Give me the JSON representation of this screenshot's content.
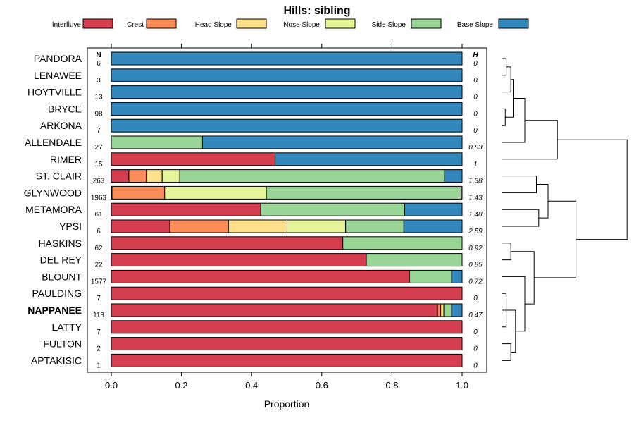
{
  "chart_data": {
    "type": "bar",
    "stacked": true,
    "orientation": "horizontal",
    "title": "Hills: sibling",
    "xlabel": "Proportion",
    "ylabel": "",
    "xlim": [
      0,
      1
    ],
    "xticks": [
      0.0,
      0.2,
      0.4,
      0.6,
      0.8,
      1.0
    ],
    "xtick_labels": [
      "0.0",
      "0.2",
      "0.4",
      "0.6",
      "0.8",
      "1.0"
    ],
    "n_header": "N",
    "h_header": "H",
    "legend_position": "top",
    "series": [
      {
        "name": "Interfluve",
        "color": "#d53e4f"
      },
      {
        "name": "Crest",
        "color": "#fc8d59"
      },
      {
        "name": "Head Slope",
        "color": "#fee08b"
      },
      {
        "name": "Nose Slope",
        "color": "#e6f598"
      },
      {
        "name": "Side Slope",
        "color": "#99d594"
      },
      {
        "name": "Base Slope",
        "color": "#3288bd"
      }
    ],
    "categories": [
      {
        "name": "PANDORA",
        "n": "6",
        "h": "0",
        "bold": false,
        "values": [
          0,
          0,
          0,
          0,
          0,
          1
        ]
      },
      {
        "name": "LENAWEE",
        "n": "3",
        "h": "0",
        "bold": false,
        "values": [
          0,
          0,
          0,
          0,
          0,
          1
        ]
      },
      {
        "name": "HOYTVILLE",
        "n": "13",
        "h": "0",
        "bold": false,
        "values": [
          0,
          0,
          0,
          0,
          0,
          1
        ]
      },
      {
        "name": "BRYCE",
        "n": "98",
        "h": "0",
        "bold": false,
        "values": [
          0,
          0,
          0,
          0,
          0,
          1
        ]
      },
      {
        "name": "ARKONA",
        "n": "7",
        "h": "0",
        "bold": false,
        "values": [
          0,
          0,
          0,
          0,
          0,
          1
        ]
      },
      {
        "name": "ALLENDALE",
        "n": "27",
        "h": "0.83",
        "bold": false,
        "values": [
          0,
          0,
          0,
          0,
          0.26,
          0.74
        ]
      },
      {
        "name": "RIMER",
        "n": "15",
        "h": "1",
        "bold": false,
        "values": [
          0.467,
          0,
          0,
          0,
          0,
          0.533
        ]
      },
      {
        "name": "ST. CLAIR",
        "n": "263",
        "h": "1.38",
        "bold": false,
        "values": [
          0.05,
          0.05,
          0.045,
          0.05,
          0.755,
          0.05
        ]
      },
      {
        "name": "GLYNWOOD",
        "n": "1963",
        "h": "1.43",
        "bold": false,
        "values": [
          0.002,
          0.15,
          0,
          0.29,
          0.555,
          0.003
        ]
      },
      {
        "name": "METAMORA",
        "n": "61",
        "h": "1.48",
        "bold": false,
        "values": [
          0.426,
          0,
          0,
          0,
          0.41,
          0.164
        ]
      },
      {
        "name": "YPSI",
        "n": "6",
        "h": "2.59",
        "bold": false,
        "values": [
          0.167,
          0.167,
          0.167,
          0.167,
          0.166,
          0.166
        ]
      },
      {
        "name": "HASKINS",
        "n": "62",
        "h": "0.92",
        "bold": false,
        "values": [
          0.66,
          0,
          0,
          0,
          0.34,
          0
        ]
      },
      {
        "name": "DEL REY",
        "n": "22",
        "h": "0.85",
        "bold": false,
        "values": [
          0.727,
          0,
          0,
          0,
          0.273,
          0
        ]
      },
      {
        "name": "BLOUNT",
        "n": "1577",
        "h": "0.72",
        "bold": false,
        "values": [
          0.85,
          0,
          0,
          0,
          0.12,
          0.03
        ]
      },
      {
        "name": "PAULDING",
        "n": "7",
        "h": "0",
        "bold": false,
        "values": [
          1,
          0,
          0,
          0,
          0,
          0
        ]
      },
      {
        "name": "NAPPANEE",
        "n": "113",
        "h": "0.47",
        "bold": true,
        "values": [
          0.93,
          0.009,
          0.009,
          0,
          0.022,
          0.03
        ]
      },
      {
        "name": "LATTY",
        "n": "7",
        "h": "0",
        "bold": false,
        "values": [
          1,
          0,
          0,
          0,
          0,
          0
        ]
      },
      {
        "name": "FULTON",
        "n": "2",
        "h": "0",
        "bold": false,
        "values": [
          1,
          0,
          0,
          0,
          0,
          0
        ]
      },
      {
        "name": "APTAKISIC",
        "n": "1",
        "h": "0",
        "bold": false,
        "values": [
          1,
          0,
          0,
          0,
          0,
          0
        ]
      }
    ],
    "dendrogram": {
      "type": "dendrogram",
      "description": "Hierarchical clustering of soil series, leaves in row order",
      "merges": [
        {
          "a": 3,
          "b": 4,
          "height": 0.08
        },
        {
          "a": 0,
          "b": 1,
          "height": 0.1
        },
        {
          "a": "m2",
          "b": 2,
          "height": 0.2
        },
        {
          "a": "m3",
          "b": "m1",
          "height": 0.25
        },
        {
          "a": 17,
          "b": 18,
          "height": 0.2
        },
        {
          "a": 14,
          "b": 16,
          "height": 0.1
        },
        {
          "a": "m6",
          "b": 15,
          "height": 0.25
        },
        {
          "a": 11,
          "b": 12,
          "height": 0.2
        },
        {
          "a": "m5",
          "b": "m7",
          "height": 0.3
        },
        {
          "a": "m9",
          "b": 13,
          "height": 0.5
        },
        {
          "a": "m10",
          "b": "m8",
          "height": 0.7
        },
        {
          "a": 7,
          "b": 8,
          "height": 0.75
        },
        {
          "a": 9,
          "b": 10,
          "height": 0.8
        },
        {
          "a": "m4",
          "b": 5,
          "height": 0.5
        },
        {
          "a": "m14",
          "b": 6,
          "height": 1.2
        },
        {
          "a": "m12",
          "b": "m13",
          "height": 1.0
        },
        {
          "a": "m16",
          "b": "m11",
          "height": 1.6
        },
        {
          "a": "m15",
          "b": "m17",
          "height": 2.7
        }
      ]
    }
  }
}
